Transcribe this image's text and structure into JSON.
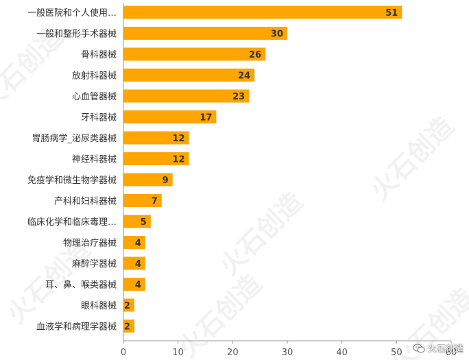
{
  "chart_data": {
    "type": "bar",
    "orientation": "horizontal",
    "categories": [
      "一般医院和个人使用…",
      "一般和整形手术器械",
      "骨科器械",
      "放射科器械",
      "心血管器械",
      "牙科器械",
      "胃肠病学_泌尿类器械",
      "神经科器械",
      "免疫学和微生物学器械",
      "产科和妇科器械",
      "临床化学和临床毒理…",
      "物理治疗器械",
      "麻醉学器械",
      "耳、鼻、喉类器械",
      "眼科器械",
      "血液学和病理学器械"
    ],
    "values": [
      51,
      30,
      26,
      24,
      23,
      17,
      12,
      12,
      9,
      7,
      5,
      4,
      4,
      4,
      2,
      2
    ],
    "data_labels": [
      "51",
      "30",
      "26",
      "24",
      "23",
      "17",
      "12",
      "12",
      "9",
      "7",
      "5",
      "4",
      "4",
      "4",
      "2",
      "2"
    ],
    "x_ticks": [
      "0",
      "10",
      "20",
      "30",
      "40",
      "50",
      "60"
    ],
    "xlim": [
      0,
      60
    ],
    "title": "",
    "xlabel": "",
    "ylabel": "",
    "grid": false,
    "legend": "none",
    "bar_color": "#FFA500",
    "label_color": "#333333"
  },
  "watermark": {
    "text": "火石创造",
    "color": "#e6e6e6"
  },
  "brand": {
    "icon": "wechat-icon",
    "text": "火石创造"
  }
}
